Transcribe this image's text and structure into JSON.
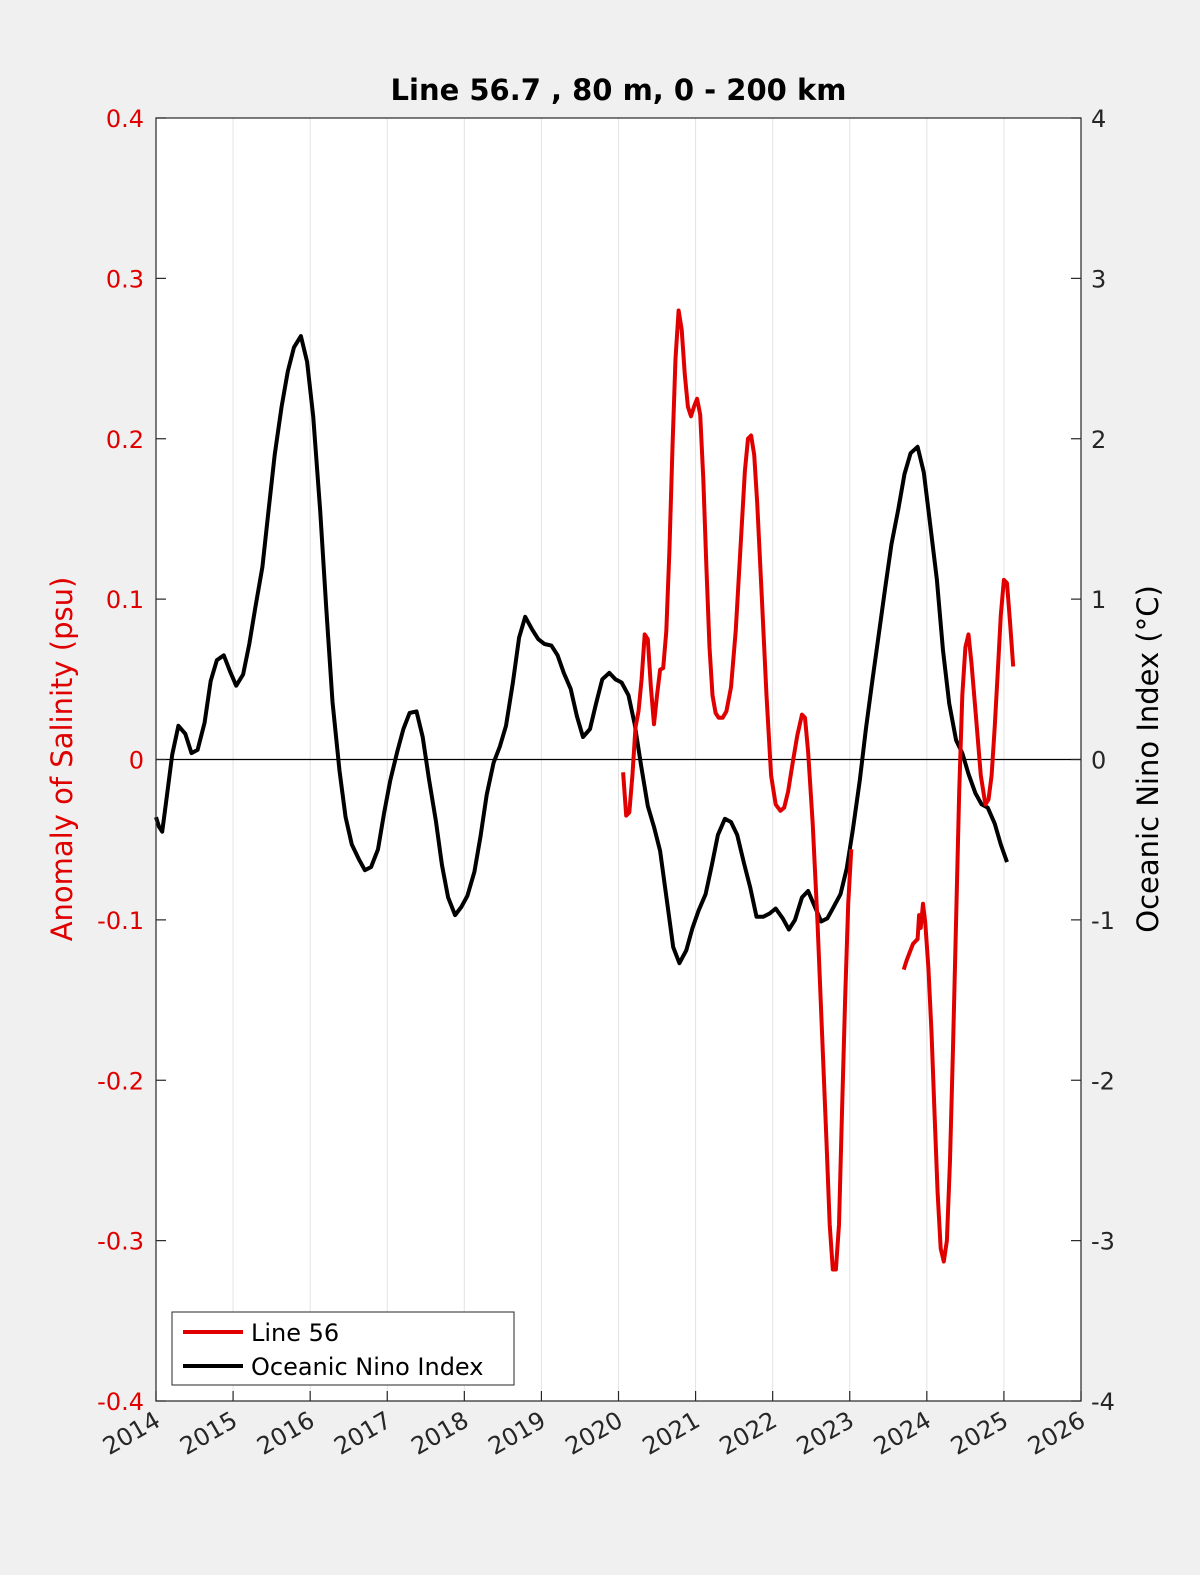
{
  "chart_data": {
    "type": "line",
    "title": "Line 56.7 , 80 m, 0 - 200 km",
    "xlabel": "",
    "ylabel_left": "Anomaly of Salinity (psu)",
    "ylabel_right": "Oceanic Nino Index (°C)",
    "xlim": [
      2014,
      2026
    ],
    "ylim_left": [
      -0.4,
      0.4
    ],
    "ylim_right": [
      -4,
      4
    ],
    "x_ticks": [
      "2014",
      "2015",
      "2016",
      "2017",
      "2018",
      "2019",
      "2020",
      "2021",
      "2022",
      "2023",
      "2024",
      "2025",
      "2026"
    ],
    "y_left_ticks": [
      "0.4",
      "0.3",
      "0.2",
      "0.1",
      "0",
      "-0.1",
      "-0.2",
      "-0.3",
      "-0.4"
    ],
    "y_right_ticks": [
      "4",
      "3",
      "2",
      "1",
      "0",
      "-1",
      "-2",
      "-3",
      "-4"
    ],
    "grid": "vertical",
    "legend_position": "bottom-left",
    "colors": {
      "left_axis": "#e00000",
      "line56": "#e00000",
      "oni": "#000000"
    },
    "series": [
      {
        "name": "Line 56",
        "axis": "left",
        "segments": [
          [
            [
              2020.06,
              -0.008
            ],
            [
              2020.1,
              -0.035
            ],
            [
              2020.14,
              -0.033
            ],
            [
              2020.18,
              -0.01
            ],
            [
              2020.22,
              0.02
            ],
            [
              2020.26,
              0.03
            ],
            [
              2020.3,
              0.05
            ],
            [
              2020.34,
              0.078
            ],
            [
              2020.38,
              0.075
            ],
            [
              2020.42,
              0.045
            ],
            [
              2020.46,
              0.022
            ],
            [
              2020.5,
              0.04
            ],
            [
              2020.54,
              0.056
            ],
            [
              2020.58,
              0.057
            ],
            [
              2020.62,
              0.08
            ],
            [
              2020.66,
              0.13
            ],
            [
              2020.7,
              0.195
            ],
            [
              2020.74,
              0.25
            ],
            [
              2020.78,
              0.28
            ],
            [
              2020.82,
              0.268
            ],
            [
              2020.86,
              0.24
            ],
            [
              2020.9,
              0.22
            ],
            [
              2020.94,
              0.214
            ],
            [
              2020.98,
              0.22
            ],
            [
              2021.02,
              0.225
            ],
            [
              2021.06,
              0.215
            ],
            [
              2021.1,
              0.175
            ],
            [
              2021.14,
              0.12
            ],
            [
              2021.18,
              0.07
            ],
            [
              2021.22,
              0.04
            ],
            [
              2021.26,
              0.029
            ],
            [
              2021.3,
              0.026
            ],
            [
              2021.35,
              0.026
            ],
            [
              2021.4,
              0.03
            ],
            [
              2021.46,
              0.045
            ],
            [
              2021.52,
              0.08
            ],
            [
              2021.58,
              0.13
            ],
            [
              2021.64,
              0.18
            ],
            [
              2021.68,
              0.2
            ],
            [
              2021.72,
              0.202
            ],
            [
              2021.76,
              0.19
            ],
            [
              2021.8,
              0.16
            ],
            [
              2021.86,
              0.1
            ],
            [
              2021.92,
              0.04
            ],
            [
              2021.98,
              -0.01
            ],
            [
              2022.04,
              -0.028
            ],
            [
              2022.1,
              -0.032
            ],
            [
              2022.15,
              -0.03
            ],
            [
              2022.2,
              -0.02
            ],
            [
              2022.26,
              -0.002
            ],
            [
              2022.32,
              0.015
            ],
            [
              2022.38,
              0.028
            ],
            [
              2022.42,
              0.026
            ],
            [
              2022.46,
              0.005
            ],
            [
              2022.52,
              -0.04
            ],
            [
              2022.58,
              -0.1
            ],
            [
              2022.64,
              -0.17
            ],
            [
              2022.7,
              -0.24
            ],
            [
              2022.74,
              -0.29
            ],
            [
              2022.78,
              -0.318
            ],
            [
              2022.82,
              -0.318
            ],
            [
              2022.86,
              -0.29
            ],
            [
              2022.9,
              -0.22
            ],
            [
              2022.94,
              -0.15
            ],
            [
              2022.98,
              -0.09
            ],
            [
              2023.02,
              -0.056
            ]
          ],
          [
            [
              2023.7,
              -0.131
            ],
            [
              2023.74,
              -0.125
            ],
            [
              2023.78,
              -0.12
            ],
            [
              2023.82,
              -0.115
            ],
            [
              2023.86,
              -0.113
            ],
            [
              2023.88,
              -0.112
            ],
            [
              2023.9,
              -0.097
            ],
            [
              2023.92,
              -0.105
            ],
            [
              2023.95,
              -0.09
            ],
            [
              2023.98,
              -0.102
            ],
            [
              2024.02,
              -0.13
            ],
            [
              2024.06,
              -0.17
            ],
            [
              2024.1,
              -0.22
            ],
            [
              2024.14,
              -0.27
            ],
            [
              2024.18,
              -0.305
            ],
            [
              2024.22,
              -0.313
            ],
            [
              2024.26,
              -0.3
            ],
            [
              2024.3,
              -0.25
            ],
            [
              2024.34,
              -0.18
            ],
            [
              2024.38,
              -0.1
            ],
            [
              2024.42,
              -0.02
            ],
            [
              2024.46,
              0.04
            ],
            [
              2024.5,
              0.07
            ],
            [
              2024.54,
              0.078
            ],
            [
              2024.58,
              0.06
            ],
            [
              2024.64,
              0.025
            ],
            [
              2024.7,
              -0.01
            ],
            [
              2024.76,
              -0.028
            ],
            [
              2024.8,
              -0.025
            ],
            [
              2024.84,
              -0.01
            ],
            [
              2024.88,
              0.02
            ],
            [
              2024.92,
              0.055
            ],
            [
              2024.96,
              0.09
            ],
            [
              2025.0,
              0.112
            ],
            [
              2025.04,
              0.11
            ],
            [
              2025.08,
              0.085
            ],
            [
              2025.12,
              0.058
            ]
          ]
        ]
      },
      {
        "name": "Oceanic Nino Index",
        "axis": "right",
        "segments": [
          [
            [
              2014.0,
              -0.36
            ],
            [
              2014.04,
              -0.42
            ],
            [
              2014.08,
              -0.45
            ],
            [
              2014.13,
              -0.27
            ],
            [
              2014.21,
              0.03
            ],
            [
              2014.29,
              0.21
            ],
            [
              2014.38,
              0.16
            ],
            [
              2014.46,
              0.04
            ],
            [
              2014.54,
              0.06
            ],
            [
              2014.63,
              0.23
            ],
            [
              2014.71,
              0.49
            ],
            [
              2014.79,
              0.62
            ],
            [
              2014.88,
              0.65
            ],
            [
              2014.96,
              0.55
            ],
            [
              2015.04,
              0.46
            ],
            [
              2015.13,
              0.53
            ],
            [
              2015.21,
              0.72
            ],
            [
              2015.29,
              0.95
            ],
            [
              2015.38,
              1.2
            ],
            [
              2015.46,
              1.55
            ],
            [
              2015.54,
              1.9
            ],
            [
              2015.63,
              2.2
            ],
            [
              2015.71,
              2.42
            ],
            [
              2015.79,
              2.57
            ],
            [
              2015.88,
              2.64
            ],
            [
              2015.96,
              2.48
            ],
            [
              2016.04,
              2.14
            ],
            [
              2016.13,
              1.55
            ],
            [
              2016.21,
              0.93
            ],
            [
              2016.29,
              0.36
            ],
            [
              2016.38,
              -0.07
            ],
            [
              2016.46,
              -0.36
            ],
            [
              2016.54,
              -0.53
            ],
            [
              2016.63,
              -0.62
            ],
            [
              2016.71,
              -0.69
            ],
            [
              2016.79,
              -0.67
            ],
            [
              2016.88,
              -0.56
            ],
            [
              2016.96,
              -0.33
            ],
            [
              2017.04,
              -0.13
            ],
            [
              2017.13,
              0.05
            ],
            [
              2017.21,
              0.19
            ],
            [
              2017.29,
              0.29
            ],
            [
              2017.38,
              0.3
            ],
            [
              2017.46,
              0.14
            ],
            [
              2017.54,
              -0.12
            ],
            [
              2017.63,
              -0.38
            ],
            [
              2017.71,
              -0.66
            ],
            [
              2017.79,
              -0.86
            ],
            [
              2017.88,
              -0.97
            ],
            [
              2017.96,
              -0.92
            ],
            [
              2018.04,
              -0.85
            ],
            [
              2018.13,
              -0.7
            ],
            [
              2018.21,
              -0.48
            ],
            [
              2018.29,
              -0.22
            ],
            [
              2018.38,
              -0.02
            ],
            [
              2018.46,
              0.08
            ],
            [
              2018.54,
              0.21
            ],
            [
              2018.63,
              0.48
            ],
            [
              2018.71,
              0.76
            ],
            [
              2018.79,
              0.89
            ],
            [
              2018.88,
              0.81
            ],
            [
              2018.96,
              0.75
            ],
            [
              2019.04,
              0.72
            ],
            [
              2019.13,
              0.71
            ],
            [
              2019.21,
              0.65
            ],
            [
              2019.29,
              0.54
            ],
            [
              2019.38,
              0.44
            ],
            [
              2019.46,
              0.27
            ],
            [
              2019.54,
              0.14
            ],
            [
              2019.63,
              0.19
            ],
            [
              2019.71,
              0.35
            ],
            [
              2019.79,
              0.5
            ],
            [
              2019.88,
              0.54
            ],
            [
              2019.96,
              0.5
            ],
            [
              2020.04,
              0.48
            ],
            [
              2020.13,
              0.4
            ],
            [
              2020.21,
              0.22
            ],
            [
              2020.29,
              -0.03
            ],
            [
              2020.38,
              -0.29
            ],
            [
              2020.46,
              -0.42
            ],
            [
              2020.54,
              -0.57
            ],
            [
              2020.63,
              -0.89
            ],
            [
              2020.71,
              -1.17
            ],
            [
              2020.79,
              -1.27
            ],
            [
              2020.88,
              -1.19
            ],
            [
              2020.96,
              -1.05
            ],
            [
              2021.04,
              -0.94
            ],
            [
              2021.13,
              -0.84
            ],
            [
              2021.21,
              -0.66
            ],
            [
              2021.29,
              -0.47
            ],
            [
              2021.38,
              -0.37
            ],
            [
              2021.46,
              -0.39
            ],
            [
              2021.54,
              -0.47
            ],
            [
              2021.63,
              -0.65
            ],
            [
              2021.71,
              -0.8
            ],
            [
              2021.79,
              -0.98
            ],
            [
              2021.88,
              -0.98
            ],
            [
              2021.96,
              -0.96
            ],
            [
              2022.04,
              -0.93
            ],
            [
              2022.13,
              -0.99
            ],
            [
              2022.21,
              -1.06
            ],
            [
              2022.29,
              -1.0
            ],
            [
              2022.38,
              -0.86
            ],
            [
              2022.46,
              -0.82
            ],
            [
              2022.54,
              -0.91
            ],
            [
              2022.63,
              -1.01
            ],
            [
              2022.71,
              -0.99
            ],
            [
              2022.79,
              -0.92
            ],
            [
              2022.88,
              -0.84
            ],
            [
              2022.96,
              -0.68
            ],
            [
              2023.04,
              -0.44
            ],
            [
              2023.13,
              -0.13
            ],
            [
              2023.21,
              0.19
            ],
            [
              2023.29,
              0.48
            ],
            [
              2023.38,
              0.79
            ],
            [
              2023.46,
              1.07
            ],
            [
              2023.54,
              1.34
            ],
            [
              2023.63,
              1.56
            ],
            [
              2023.71,
              1.78
            ],
            [
              2023.79,
              1.91
            ],
            [
              2023.88,
              1.95
            ],
            [
              2023.96,
              1.79
            ],
            [
              2024.04,
              1.48
            ],
            [
              2024.13,
              1.12
            ],
            [
              2024.21,
              0.68
            ],
            [
              2024.29,
              0.35
            ],
            [
              2024.38,
              0.12
            ],
            [
              2024.46,
              0.04
            ],
            [
              2024.54,
              -0.09
            ],
            [
              2024.63,
              -0.21
            ],
            [
              2024.71,
              -0.28
            ],
            [
              2024.79,
              -0.3
            ],
            [
              2024.88,
              -0.4
            ],
            [
              2024.96,
              -0.53
            ],
            [
              2025.04,
              -0.64
            ]
          ]
        ]
      }
    ]
  }
}
